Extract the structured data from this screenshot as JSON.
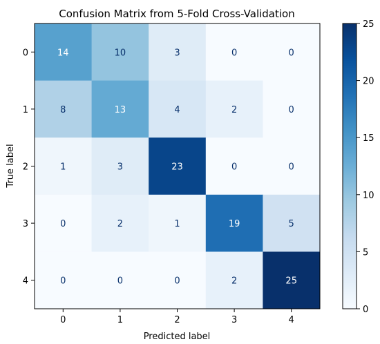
{
  "chart_data": {
    "type": "heatmap",
    "title": "Confusion Matrix from 5-Fold Cross-Validation",
    "xlabel": "Predicted label",
    "ylabel": "True label",
    "x_categories": [
      "0",
      "1",
      "2",
      "3",
      "4"
    ],
    "y_categories": [
      "0",
      "1",
      "2",
      "3",
      "4"
    ],
    "values": [
      [
        14,
        10,
        3,
        0,
        0
      ],
      [
        8,
        13,
        4,
        2,
        0
      ],
      [
        1,
        3,
        23,
        0,
        0
      ],
      [
        0,
        2,
        1,
        19,
        5
      ],
      [
        0,
        0,
        0,
        2,
        25
      ]
    ],
    "colormap": "Blues",
    "vmin": 0,
    "vmax": 25,
    "colorbar_ticks": [
      0,
      5,
      10,
      15,
      20,
      25
    ],
    "grid": false
  }
}
